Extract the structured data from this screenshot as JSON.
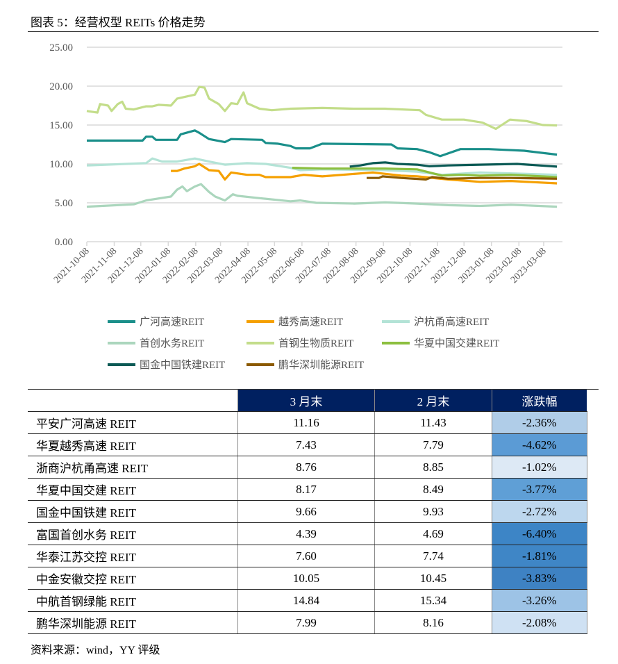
{
  "title": "图表 5：经营权型 REITs 价格走势",
  "source": "资料来源：wind，YY 评级",
  "chart_data": {
    "type": "line",
    "ylim": [
      0,
      25
    ],
    "yticks": [
      "0.00",
      "5.00",
      "10.00",
      "15.00",
      "20.00",
      "25.00"
    ],
    "xticks": [
      "2021-10-08",
      "2021-11-08",
      "2021-12-08",
      "2022-01-08",
      "2022-02-08",
      "2022-03-08",
      "2022-04-08",
      "2022-05-08",
      "2022-06-08",
      "2022-07-08",
      "2022-08-08",
      "2022-09-08",
      "2022-10-08",
      "2022-11-08",
      "2022-12-08",
      "2023-01-08",
      "2023-02-08",
      "2023-03-08"
    ],
    "grid": true,
    "legend_position": "bottom",
    "series": [
      {
        "name": "广河高速REIT",
        "color": "#1a8f8a",
        "points": [
          [
            "2021-10-08",
            13.0
          ],
          [
            "2021-12-10",
            13.0
          ],
          [
            "2021-12-14",
            13.5
          ],
          [
            "2021-12-21",
            13.5
          ],
          [
            "2021-12-25",
            13.1
          ],
          [
            "2022-01-18",
            13.1
          ],
          [
            "2022-01-22",
            13.8
          ],
          [
            "2022-02-07",
            14.3
          ],
          [
            "2022-02-12",
            14.0
          ],
          [
            "2022-02-23",
            13.2
          ],
          [
            "2022-03-13",
            12.8
          ],
          [
            "2022-03-20",
            13.2
          ],
          [
            "2022-04-24",
            13.1
          ],
          [
            "2022-04-28",
            12.7
          ],
          [
            "2022-05-12",
            12.6
          ],
          [
            "2022-05-26",
            12.3
          ],
          [
            "2022-06-01",
            12.0
          ],
          [
            "2022-06-17",
            12.0
          ],
          [
            "2022-07-01",
            12.6
          ],
          [
            "2022-09-17",
            12.5
          ],
          [
            "2022-09-24",
            12.0
          ],
          [
            "2022-10-16",
            11.9
          ],
          [
            "2022-10-30",
            11.5
          ],
          [
            "2022-11-11",
            11.0
          ],
          [
            "2022-12-04",
            11.9
          ],
          [
            "2023-01-05",
            11.9
          ],
          [
            "2023-02-14",
            11.7
          ],
          [
            "2023-03-23",
            11.2
          ]
        ]
      },
      {
        "name": "越秀高速REIT",
        "color": "#f5a000",
        "points": [
          [
            "2022-01-11",
            9.1
          ],
          [
            "2022-01-18",
            9.1
          ],
          [
            "2022-01-26",
            9.4
          ],
          [
            "2022-02-07",
            9.7
          ],
          [
            "2022-02-12",
            10.0
          ],
          [
            "2022-02-23",
            9.2
          ],
          [
            "2022-03-06",
            9.1
          ],
          [
            "2022-03-13",
            8.0
          ],
          [
            "2022-03-20",
            8.9
          ],
          [
            "2022-04-07",
            8.6
          ],
          [
            "2022-04-21",
            8.6
          ],
          [
            "2022-04-28",
            8.3
          ],
          [
            "2022-05-26",
            8.3
          ],
          [
            "2022-06-10",
            8.6
          ],
          [
            "2022-07-01",
            8.4
          ],
          [
            "2022-08-27",
            8.9
          ],
          [
            "2022-09-28",
            8.5
          ],
          [
            "2022-10-16",
            8.4
          ],
          [
            "2022-11-20",
            8.0
          ],
          [
            "2022-12-26",
            7.7
          ],
          [
            "2023-01-30",
            7.8
          ],
          [
            "2023-03-23",
            7.5
          ]
        ]
      },
      {
        "name": "沪杭甬高速REIT",
        "color": "#b3e3d6",
        "points": [
          [
            "2021-10-08",
            9.8
          ],
          [
            "2021-12-14",
            10.1
          ],
          [
            "2021-12-21",
            10.7
          ],
          [
            "2022-01-01",
            10.3
          ],
          [
            "2022-01-18",
            10.3
          ],
          [
            "2022-02-07",
            10.7
          ],
          [
            "2022-02-23",
            10.3
          ],
          [
            "2022-03-13",
            9.9
          ],
          [
            "2022-04-07",
            10.1
          ],
          [
            "2022-04-28",
            10.0
          ],
          [
            "2022-05-26",
            9.5
          ],
          [
            "2022-06-06",
            9.2
          ],
          [
            "2022-07-01",
            9.3
          ],
          [
            "2022-09-10",
            9.2
          ],
          [
            "2022-10-16",
            9.0
          ],
          [
            "2022-11-13",
            8.6
          ],
          [
            "2022-12-26",
            8.9
          ],
          [
            "2023-03-23",
            8.6
          ]
        ]
      },
      {
        "name": "首创水务REIT",
        "color": "#abd6bd",
        "points": [
          [
            "2021-10-08",
            4.5
          ],
          [
            "2021-10-25",
            4.6
          ],
          [
            "2021-11-30",
            4.8
          ],
          [
            "2021-12-14",
            5.3
          ],
          [
            "2022-01-11",
            5.8
          ],
          [
            "2022-01-18",
            6.7
          ],
          [
            "2022-01-24",
            7.1
          ],
          [
            "2022-01-29",
            6.5
          ],
          [
            "2022-02-07",
            7.1
          ],
          [
            "2022-02-14",
            7.4
          ],
          [
            "2022-02-23",
            6.4
          ],
          [
            "2022-03-02",
            5.8
          ],
          [
            "2022-03-13",
            5.3
          ],
          [
            "2022-03-22",
            6.1
          ],
          [
            "2022-03-27",
            5.9
          ],
          [
            "2022-04-21",
            5.6
          ],
          [
            "2022-05-26",
            5.2
          ],
          [
            "2022-06-06",
            5.3
          ],
          [
            "2022-06-24",
            5.0
          ],
          [
            "2022-08-06",
            4.9
          ],
          [
            "2022-09-10",
            5.05
          ],
          [
            "2022-10-16",
            4.9
          ],
          [
            "2022-11-20",
            4.7
          ],
          [
            "2022-12-26",
            4.6
          ],
          [
            "2023-01-30",
            4.75
          ],
          [
            "2023-03-23",
            4.5
          ]
        ]
      },
      {
        "name": "首钢生物质REIT",
        "color": "#c3dd8a",
        "points": [
          [
            "2021-10-08",
            16.8
          ],
          [
            "2021-10-20",
            16.6
          ],
          [
            "2021-10-23",
            17.7
          ],
          [
            "2021-11-01",
            17.5
          ],
          [
            "2021-11-05",
            16.8
          ],
          [
            "2021-11-12",
            17.7
          ],
          [
            "2021-11-17",
            18.0
          ],
          [
            "2021-11-21",
            17.1
          ],
          [
            "2021-11-30",
            17.0
          ],
          [
            "2021-12-14",
            17.4
          ],
          [
            "2021-12-21",
            17.4
          ],
          [
            "2021-12-28",
            17.6
          ],
          [
            "2022-01-11",
            17.5
          ],
          [
            "2022-01-18",
            18.4
          ],
          [
            "2022-01-26",
            18.6
          ],
          [
            "2022-02-07",
            18.9
          ],
          [
            "2022-02-12",
            19.9
          ],
          [
            "2022-02-18",
            19.8
          ],
          [
            "2022-02-23",
            18.4
          ],
          [
            "2022-03-06",
            17.7
          ],
          [
            "2022-03-13",
            16.8
          ],
          [
            "2022-03-20",
            17.8
          ],
          [
            "2022-03-27",
            17.7
          ],
          [
            "2022-04-03",
            19.2
          ],
          [
            "2022-04-07",
            17.8
          ],
          [
            "2022-04-21",
            17.1
          ],
          [
            "2022-05-05",
            16.9
          ],
          [
            "2022-05-26",
            17.1
          ],
          [
            "2022-07-01",
            17.2
          ],
          [
            "2022-08-06",
            17.1
          ],
          [
            "2022-09-10",
            17.1
          ],
          [
            "2022-10-19",
            16.9
          ],
          [
            "2022-10-26",
            16.3
          ],
          [
            "2022-11-13",
            15.7
          ],
          [
            "2022-12-08",
            15.7
          ],
          [
            "2022-12-29",
            15.3
          ],
          [
            "2023-01-13",
            14.5
          ],
          [
            "2023-01-29",
            15.7
          ],
          [
            "2023-02-17",
            15.5
          ],
          [
            "2023-03-07",
            15.0
          ],
          [
            "2023-03-23",
            14.95
          ]
        ]
      },
      {
        "name": "华夏中国交建REIT",
        "color": "#8cbf3f",
        "points": [
          [
            "2022-05-28",
            9.5
          ],
          [
            "2022-07-01",
            9.4
          ],
          [
            "2022-09-10",
            9.4
          ],
          [
            "2022-10-16",
            9.3
          ],
          [
            "2022-10-30",
            8.9
          ],
          [
            "2022-11-13",
            8.5
          ],
          [
            "2022-12-04",
            8.6
          ],
          [
            "2022-12-26",
            8.5
          ],
          [
            "2023-01-30",
            8.6
          ],
          [
            "2023-03-23",
            8.3
          ]
        ]
      },
      {
        "name": "国金中国铁建REIT",
        "color": "#0b5a55",
        "points": [
          [
            "2022-08-01",
            9.65
          ],
          [
            "2022-08-13",
            9.8
          ],
          [
            "2022-08-27",
            10.1
          ],
          [
            "2022-09-10",
            10.2
          ],
          [
            "2022-09-24",
            10.0
          ],
          [
            "2022-10-16",
            9.9
          ],
          [
            "2022-10-30",
            9.7
          ],
          [
            "2022-11-20",
            9.8
          ],
          [
            "2022-12-26",
            9.9
          ],
          [
            "2023-02-06",
            10.0
          ],
          [
            "2023-03-23",
            9.65
          ]
        ]
      },
      {
        "name": "鹏华深圳能源REIT",
        "color": "#8b5a00",
        "points": [
          [
            "2022-08-20",
            8.2
          ],
          [
            "2022-09-03",
            8.2
          ],
          [
            "2022-09-07",
            8.4
          ],
          [
            "2022-09-28",
            8.2
          ],
          [
            "2022-10-26",
            8.0
          ],
          [
            "2022-11-02",
            8.3
          ],
          [
            "2022-11-20",
            8.1
          ],
          [
            "2022-12-26",
            8.2
          ],
          [
            "2023-01-30",
            8.2
          ],
          [
            "2023-03-23",
            8.1
          ]
        ]
      }
    ]
  },
  "table": {
    "headers": [
      "",
      "3 月末",
      "2 月末",
      "涨跌幅"
    ],
    "rows": [
      {
        "name": "平安广河高速 REIT",
        "mar": "11.16",
        "feb": "11.43",
        "chg": "-2.36%",
        "color": "#b0cde8"
      },
      {
        "name": "华夏越秀高速 REIT",
        "mar": "7.43",
        "feb": "7.79",
        "chg": "-4.62%",
        "color": "#5b9bd5"
      },
      {
        "name": "浙商沪杭甬高速 REIT",
        "mar": "8.76",
        "feb": "8.85",
        "chg": "-1.02%",
        "color": "#dde9f5"
      },
      {
        "name": "华夏中国交建 REIT",
        "mar": "8.17",
        "feb": "8.49",
        "chg": "-3.77%",
        "color": "#5f9fd6"
      },
      {
        "name": "国金中国铁建 REIT",
        "mar": "9.66",
        "feb": "9.93",
        "chg": "-2.72%",
        "color": "#bdd7ee"
      },
      {
        "name": "富国首创水务 REIT",
        "mar": "4.39",
        "feb": "4.69",
        "chg": "-6.40%",
        "color": "#3d85c6"
      },
      {
        "name": "华泰江苏交控 REIT",
        "mar": "7.60",
        "feb": "7.74",
        "chg": "-1.81%",
        "color": "#3f86c6"
      },
      {
        "name": "中金安徽交控 REIT",
        "mar": "10.05",
        "feb": "10.45",
        "chg": "-3.83%",
        "color": "#3e82c3"
      },
      {
        "name": "中航首钢绿能 REIT",
        "mar": "14.84",
        "feb": "15.34",
        "chg": "-3.26%",
        "color": "#9dc3e6"
      },
      {
        "name": "鹏华深圳能源 REIT",
        "mar": "7.99",
        "feb": "8.16",
        "chg": "-2.08%",
        "color": "#cfe1f3"
      }
    ]
  }
}
